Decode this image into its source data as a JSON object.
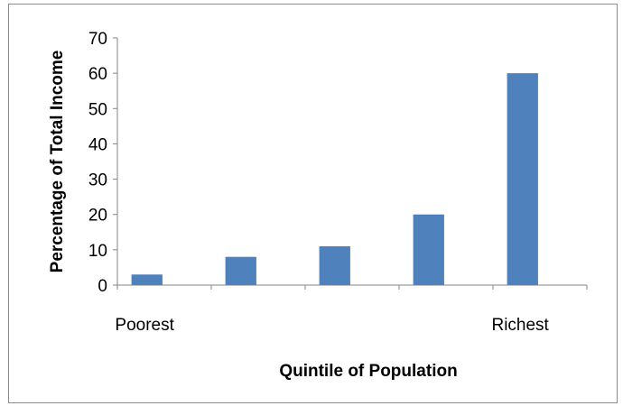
{
  "chart_data": {
    "type": "bar",
    "categories": [
      "Poorest",
      "",
      "",
      "",
      "Richest"
    ],
    "values": [
      3,
      8,
      11,
      20,
      60
    ],
    "title": "",
    "xlabel": "Quintile of Population",
    "ylabel": "Percentage of Total Income",
    "ylim": [
      0,
      70
    ],
    "yticks": [
      0,
      10,
      20,
      30,
      40,
      50,
      60,
      70
    ],
    "grid": false,
    "legend": "none",
    "bar_color": "#4f81bd"
  }
}
